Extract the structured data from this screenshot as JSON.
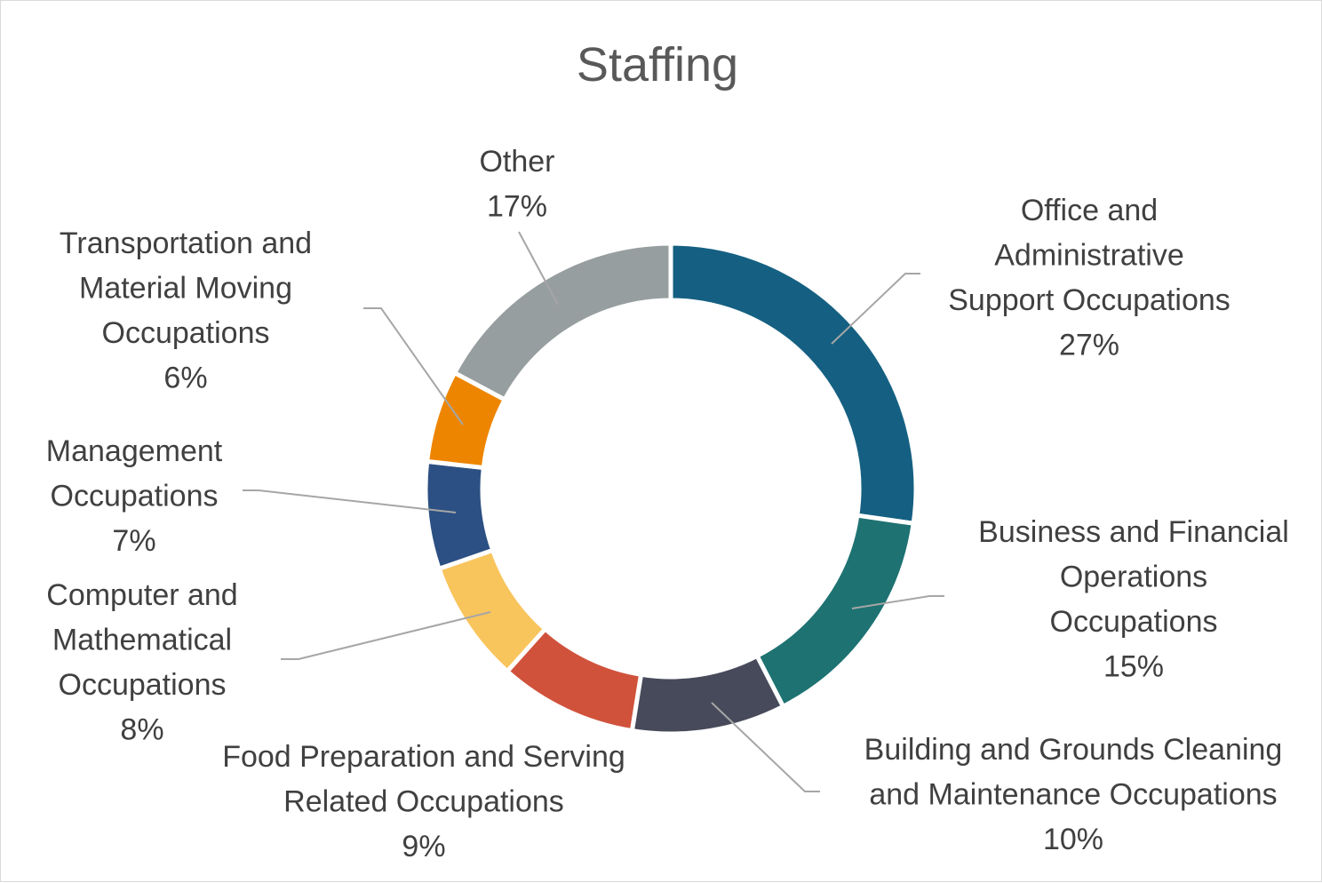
{
  "chart_data": {
    "type": "pie",
    "variant": "doughnut",
    "title": "Staffing",
    "slices": [
      {
        "label": "Office and Administrative Support Occupations",
        "lines": [
          "Office and",
          "Administrative",
          "Support Occupations"
        ],
        "value": 27,
        "pct": "27%",
        "color": "#156082"
      },
      {
        "label": "Business and Financial Operations Occupations",
        "lines": [
          "Business and Financial",
          "Operations",
          "Occupations"
        ],
        "value": 15,
        "pct": "15%",
        "color": "#1E7272"
      },
      {
        "label": "Building and Grounds Cleaning and Maintenance Occupations",
        "lines": [
          "Building and Grounds Cleaning",
          "and Maintenance Occupations"
        ],
        "value": 10,
        "pct": "10%",
        "color": "#474A5A"
      },
      {
        "label": "Food Preparation and Serving Related Occupations",
        "lines": [
          "Food Preparation and Serving",
          "Related Occupations"
        ],
        "value": 9,
        "pct": "9%",
        "color": "#D0523B"
      },
      {
        "label": "Computer and Mathematical Occupations",
        "lines": [
          "Computer and",
          "Mathematical",
          "Occupations"
        ],
        "value": 8,
        "pct": "8%",
        "color": "#F8C45C"
      },
      {
        "label": "Management Occupations",
        "lines": [
          "Management",
          "Occupations"
        ],
        "value": 7,
        "pct": "7%",
        "color": "#2C5083"
      },
      {
        "label": "Transportation and Material Moving Occupations",
        "lines": [
          "Transportation and",
          "Material Moving",
          "Occupations"
        ],
        "value": 6,
        "pct": "6%",
        "color": "#EE8500"
      },
      {
        "label": "Other",
        "lines": [
          "Other"
        ],
        "value": 17,
        "pct": "17%",
        "color": "#979E9F"
      }
    ]
  }
}
